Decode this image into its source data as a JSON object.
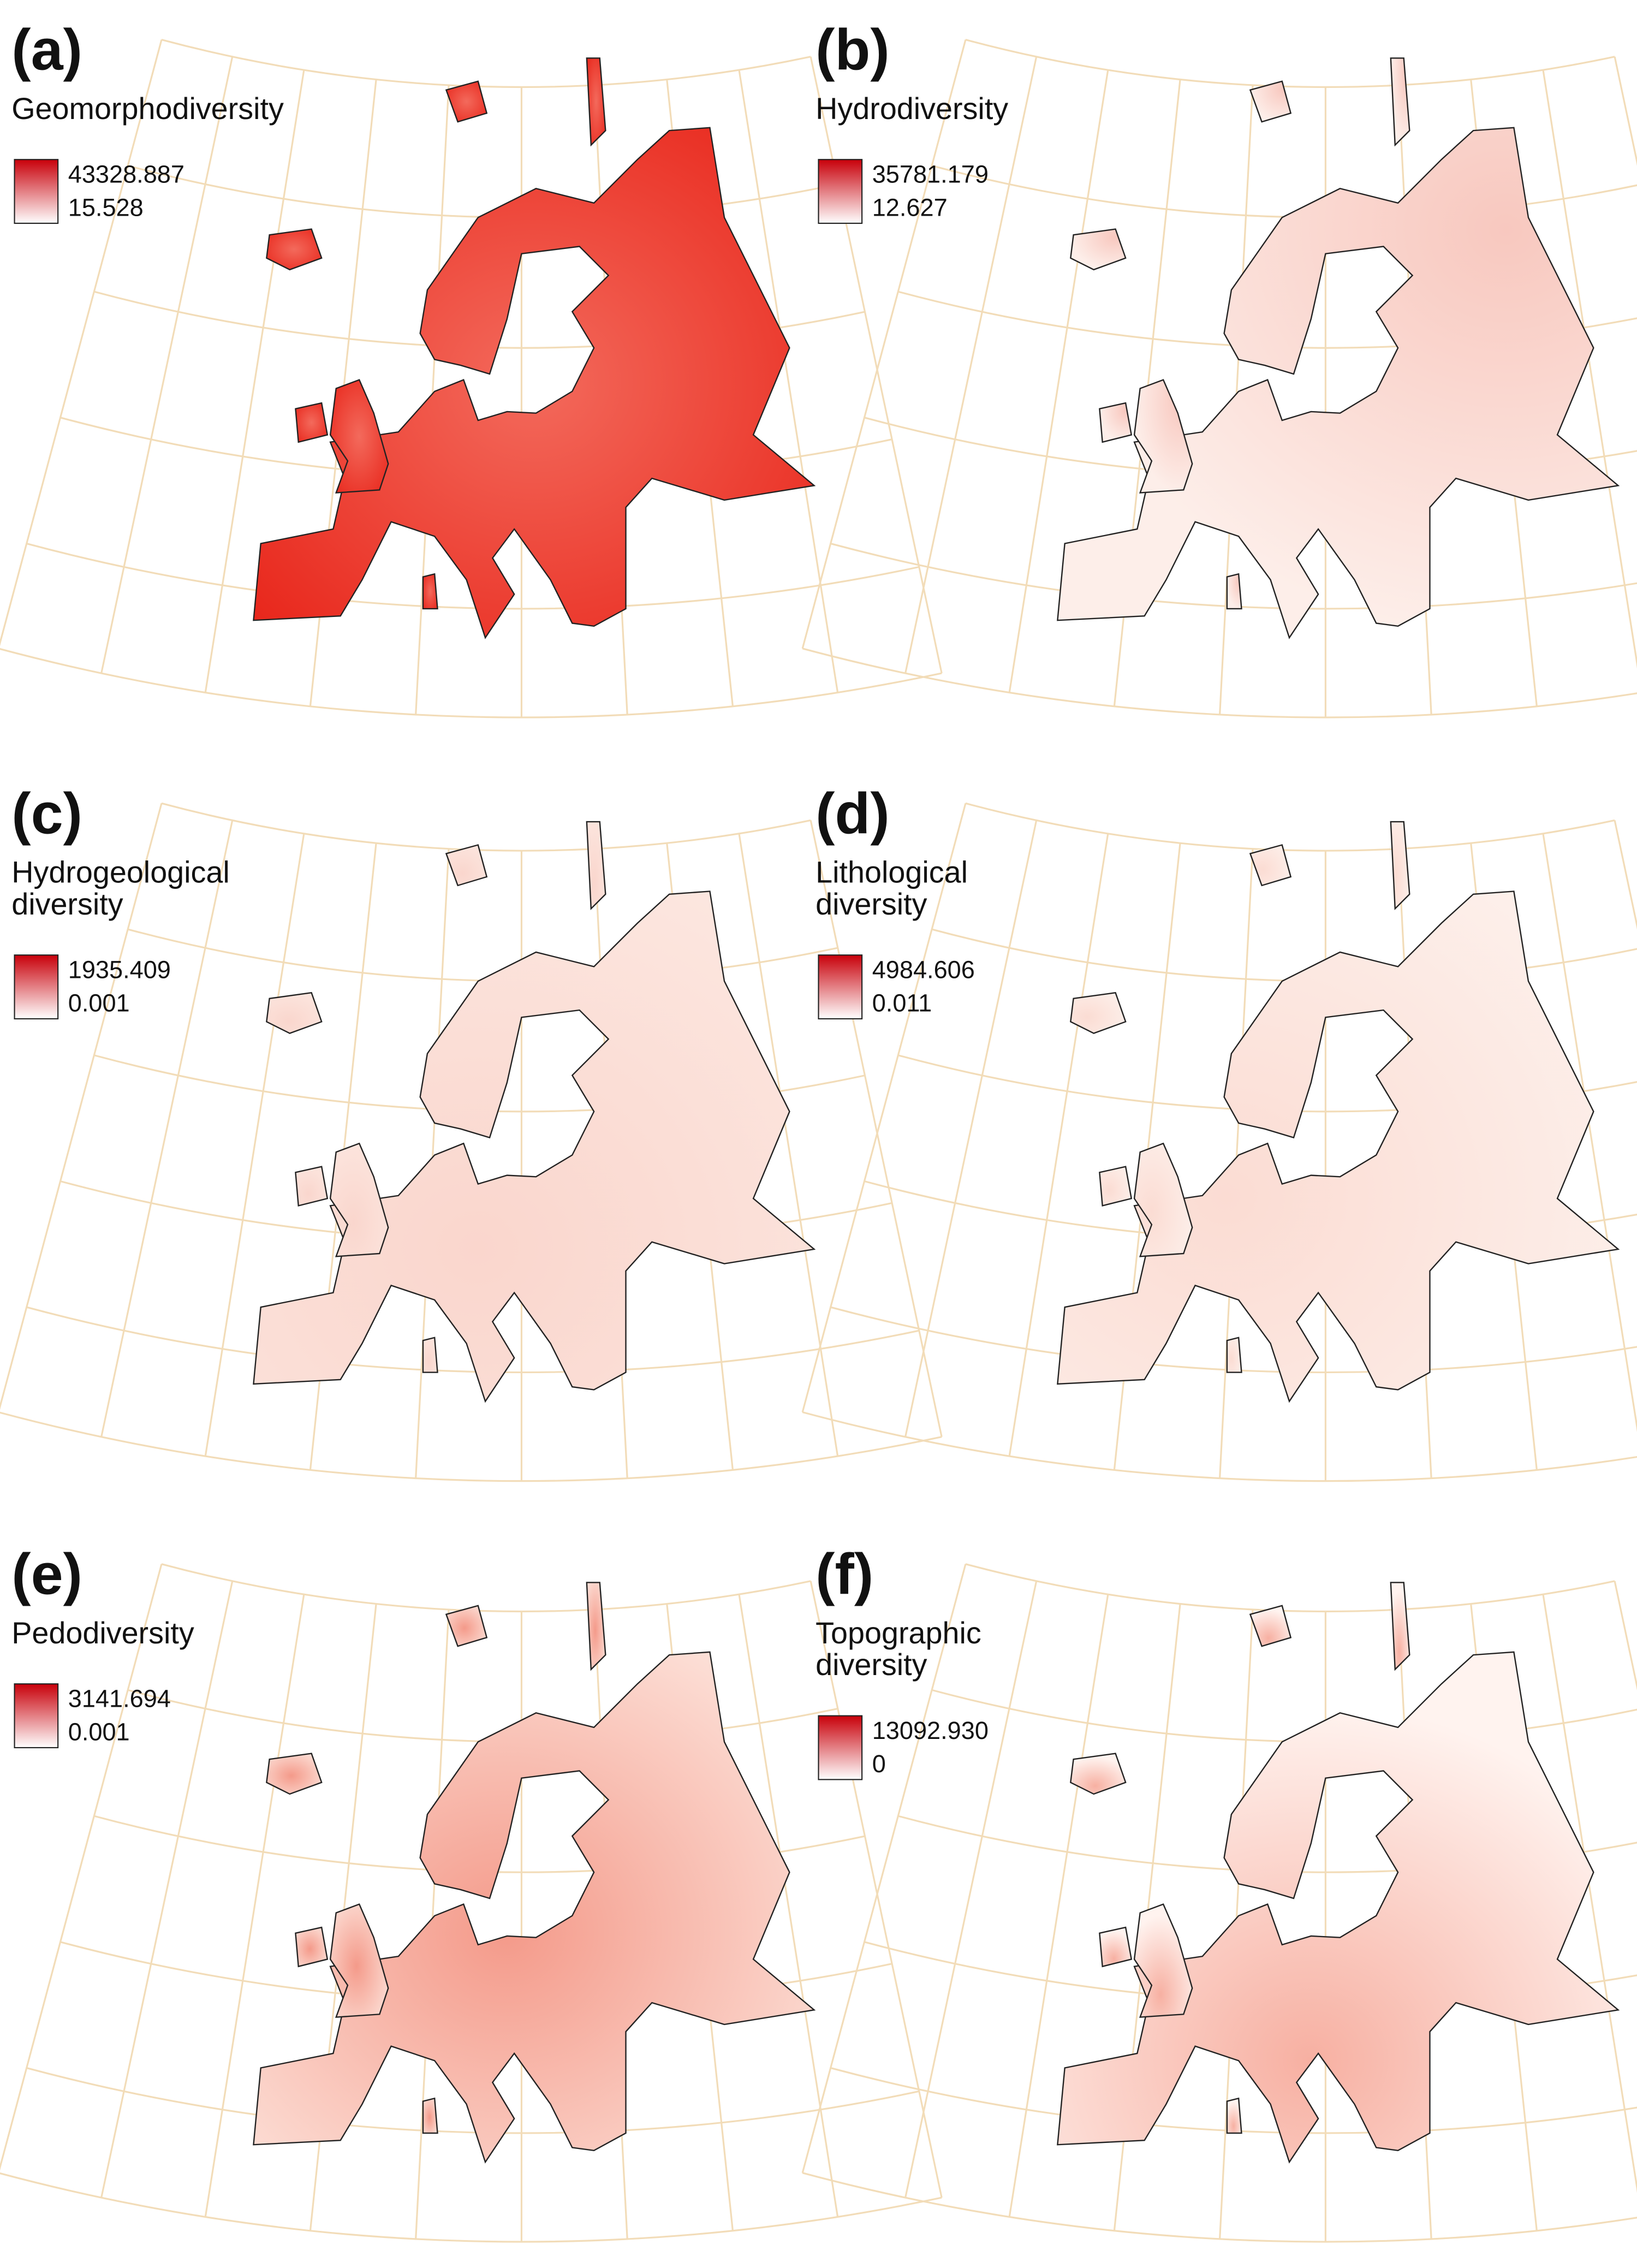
{
  "panels": [
    {
      "label": "(a)",
      "title": [
        "Geomorphodiversity"
      ],
      "legend": {
        "max": "43328.887",
        "min": "15.528"
      }
    },
    {
      "label": "(b)",
      "title": [
        "Hydrodiversity"
      ],
      "legend": {
        "max": "35781.179",
        "min": "12.627"
      }
    },
    {
      "label": "(c)",
      "title": [
        "Hydrogeological",
        "diversity"
      ],
      "legend": {
        "max": "1935.409",
        "min": "0.001"
      }
    },
    {
      "label": "(d)",
      "title": [
        "Lithological",
        "diversity"
      ],
      "legend": {
        "max": "4984.606",
        "min": "0.011"
      }
    },
    {
      "label": "(e)",
      "title": [
        "Pedodiversity"
      ],
      "legend": {
        "max": "3141.694",
        "min": "0.001"
      }
    },
    {
      "label": "(f)",
      "title": [
        "Topographic",
        "diversity"
      ],
      "legend": {
        "max": "13092.930",
        "min": "0"
      }
    }
  ]
}
